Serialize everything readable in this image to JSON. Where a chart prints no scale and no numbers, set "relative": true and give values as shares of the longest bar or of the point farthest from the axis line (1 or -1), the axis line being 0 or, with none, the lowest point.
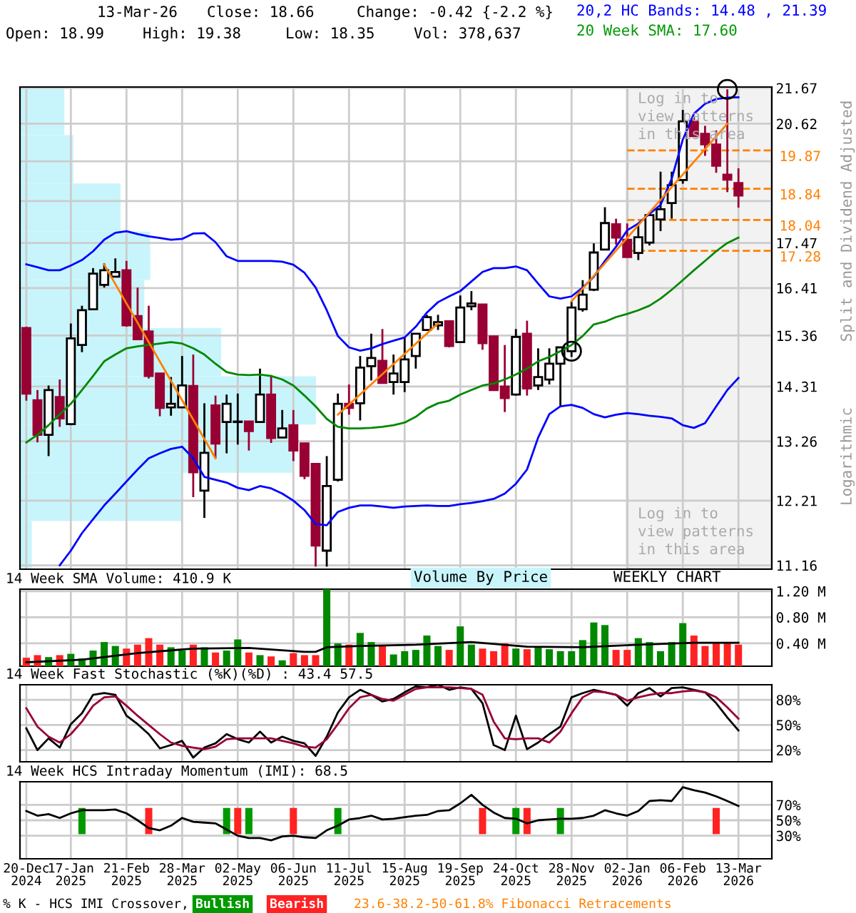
{
  "chart_data": [
    {
      "type": "candlestick",
      "x": [
        "2024-12-20",
        "2024-12-27",
        "2025-01-03",
        "2025-01-10",
        "2025-01-17",
        "2025-01-24",
        "2025-01-31",
        "2025-02-07",
        "2025-02-14",
        "2025-02-21",
        "2025-02-28",
        "2025-03-07",
        "2025-03-14",
        "2025-03-21",
        "2025-03-28",
        "2025-04-04",
        "2025-04-11",
        "2025-04-18",
        "2025-04-25",
        "2025-05-02",
        "2025-05-09",
        "2025-05-16",
        "2025-05-23",
        "2025-05-30",
        "2025-06-06",
        "2025-06-13",
        "2025-06-20",
        "2025-06-27",
        "2025-07-04",
        "2025-07-11",
        "2025-07-18",
        "2025-07-25",
        "2025-08-01",
        "2025-08-08",
        "2025-08-15",
        "2025-08-22",
        "2025-08-29",
        "2025-09-05",
        "2025-09-12",
        "2025-09-19",
        "2025-09-26",
        "2025-10-03",
        "2025-10-10",
        "2025-10-17",
        "2025-10-24",
        "2025-10-31",
        "2025-11-07",
        "2025-11-14",
        "2025-11-21",
        "2025-11-28",
        "2025-12-05",
        "2025-12-12",
        "2025-12-19",
        "2025-12-26",
        "2026-01-02",
        "2026-01-09",
        "2026-01-16",
        "2026-01-23",
        "2026-01-30",
        "2026-02-06",
        "2026-02-13",
        "2026-02-20",
        "2026-02-27",
        "2026-03-06",
        "2026-03-13"
      ],
      "ohlc": [
        [
          15.52,
          15.55,
          14.03,
          14.17
        ],
        [
          14.04,
          14.24,
          13.24,
          13.38
        ],
        [
          13.38,
          14.33,
          12.99,
          14.24
        ],
        [
          14.1,
          14.45,
          13.53,
          13.69
        ],
        [
          13.58,
          15.62,
          13.56,
          15.3
        ],
        [
          15.16,
          16.01,
          15.01,
          15.91
        ],
        [
          15.93,
          16.87,
          15.91,
          16.74
        ],
        [
          16.48,
          16.98,
          16.42,
          16.82
        ],
        [
          16.67,
          17.1,
          16.66,
          16.78
        ],
        [
          16.82,
          17.04,
          15.55,
          15.58
        ],
        [
          15.78,
          16.42,
          15.27,
          15.28
        ],
        [
          15.45,
          16.01,
          14.47,
          14.52
        ],
        [
          14.57,
          14.58,
          13.73,
          13.89
        ],
        [
          13.9,
          14.5,
          13.74,
          13.97
        ],
        [
          13.9,
          14.93,
          13.89,
          14.33
        ],
        [
          14.32,
          14.96,
          12.27,
          12.7
        ],
        [
          12.38,
          13.98,
          11.92,
          13.05
        ],
        [
          13.94,
          14.13,
          12.95,
          13.22
        ],
        [
          13.62,
          14.15,
          13.04,
          13.97
        ],
        [
          13.62,
          14.17,
          13.2,
          13.63
        ],
        [
          13.63,
          13.64,
          13.09,
          13.45
        ],
        [
          13.62,
          14.67,
          13.61,
          14.15
        ],
        [
          14.15,
          14.54,
          13.23,
          13.32
        ],
        [
          13.33,
          13.85,
          13.32,
          13.5
        ],
        [
          13.56,
          13.85,
          12.9,
          13.09
        ],
        [
          13.22,
          13.23,
          12.58,
          12.64
        ],
        [
          12.85,
          12.86,
          11.14,
          11.47
        ],
        [
          11.39,
          12.99,
          11.14,
          12.46
        ],
        [
          12.57,
          14.17,
          12.54,
          13.97
        ],
        [
          13.97,
          14.35,
          13.76,
          13.89
        ],
        [
          13.98,
          14.93,
          13.65,
          14.69
        ],
        [
          14.72,
          15.4,
          14.43,
          14.89
        ],
        [
          14.83,
          15.5,
          14.37,
          14.38
        ],
        [
          14.4,
          14.96,
          14.15,
          14.57
        ],
        [
          14.4,
          15.32,
          14.2,
          14.86
        ],
        [
          14.93,
          15.41,
          14.67,
          15.4
        ],
        [
          15.48,
          15.81,
          15.47,
          15.76
        ],
        [
          15.58,
          15.81,
          15.48,
          15.65
        ],
        [
          15.67,
          15.68,
          15.11,
          15.14
        ],
        [
          15.22,
          16.24,
          15.21,
          15.97
        ],
        [
          16.0,
          16.34,
          15.91,
          16.06
        ],
        [
          16.04,
          16.05,
          15.06,
          15.2
        ],
        [
          15.34,
          15.35,
          14.23,
          14.24
        ],
        [
          14.31,
          15.16,
          13.81,
          14.08
        ],
        [
          14.15,
          15.5,
          14.13,
          15.33
        ],
        [
          15.4,
          15.68,
          14.13,
          14.27
        ],
        [
          14.33,
          15.09,
          14.24,
          14.5
        ],
        [
          14.45,
          15.09,
          14.35,
          14.77
        ],
        [
          14.77,
          15.12,
          13.92,
          15.11
        ],
        [
          15.03,
          16.11,
          14.91,
          15.97
        ],
        [
          15.93,
          16.59,
          15.88,
          16.26
        ],
        [
          16.37,
          17.46,
          16.34,
          17.24
        ],
        [
          17.31,
          18.36,
          17.3,
          17.96
        ],
        [
          17.93,
          18.07,
          17.43,
          17.6
        ],
        [
          17.55,
          17.95,
          17.12,
          17.13
        ],
        [
          17.23,
          17.9,
          17.06,
          17.61
        ],
        [
          17.48,
          18.22,
          17.41,
          18.16
        ],
        [
          18.05,
          19.29,
          17.76,
          18.31
        ],
        [
          18.47,
          19.29,
          18.07,
          18.93
        ],
        [
          19.07,
          21.02,
          18.97,
          20.69
        ],
        [
          20.69,
          20.84,
          20.26,
          20.27
        ],
        [
          20.33,
          20.56,
          19.72,
          20.04
        ],
        [
          20.03,
          20.43,
          19.26,
          19.45
        ],
        [
          19.21,
          21.63,
          18.75,
          19.08
        ],
        [
          18.99,
          19.38,
          18.35,
          18.66
        ]
      ],
      "colors": [
        "#990033",
        "#990033",
        "#ffffff",
        "#990033",
        "#ffffff",
        "#ffffff",
        "#ffffff",
        "#ffffff",
        "#ffffff",
        "#990033",
        "#990033",
        "#990033",
        "#990033",
        "#ffffff",
        "#ffffff",
        "#990033",
        "#ffffff",
        "#990033",
        "#ffffff",
        "#ffffff",
        "#990033",
        "#ffffff",
        "#990033",
        "#ffffff",
        "#990033",
        "#990033",
        "#990033",
        "#ffffff",
        "#ffffff",
        "#990033",
        "#ffffff",
        "#ffffff",
        "#990033",
        "#ffffff",
        "#ffffff",
        "#ffffff",
        "#ffffff",
        "#ffffff",
        "#990033",
        "#ffffff",
        "#ffffff",
        "#990033",
        "#990033",
        "#990033",
        "#ffffff",
        "#990033",
        "#ffffff",
        "#ffffff",
        "#ffffff",
        "#ffffff",
        "#ffffff",
        "#ffffff",
        "#ffffff",
        "#990033",
        "#990033",
        "#ffffff",
        "#ffffff",
        "#ffffff",
        "#ffffff",
        "#ffffff",
        "#990033",
        "#990033",
        "#990033",
        "#990033",
        "#990033"
      ],
      "series": [
        {
          "type": "line",
          "color": "#0000ff",
          "values": [
            16.96,
            16.89,
            16.82,
            16.82,
            16.93,
            17.06,
            17.27,
            17.55,
            17.72,
            17.76,
            17.69,
            17.63,
            17.59,
            17.55,
            17.57,
            17.7,
            17.71,
            17.49,
            17.15,
            17.04,
            17.04,
            17.04,
            17.04,
            17.02,
            16.95,
            16.76,
            16.42,
            15.91,
            15.35,
            15.11,
            15.04,
            15.09,
            15.18,
            15.25,
            15.32,
            15.55,
            15.86,
            16.09,
            16.22,
            16.34,
            16.56,
            16.78,
            16.87,
            16.87,
            16.91,
            16.82,
            16.51,
            16.22,
            16.17,
            16.22,
            16.42,
            16.67,
            17.04,
            17.38,
            17.78,
            17.95,
            18.19,
            18.42,
            19.1,
            20.17,
            20.91,
            21.2,
            21.34,
            21.38,
            21.39
          ]
        },
        {
          "type": "line",
          "color": "#0000ff",
          "values": [
            null,
            null,
            null,
            11.16,
            11.39,
            11.67,
            11.9,
            12.13,
            12.33,
            12.54,
            12.75,
            12.95,
            13.04,
            13.12,
            13.16,
            12.95,
            12.62,
            12.57,
            12.52,
            12.43,
            12.39,
            12.46,
            12.42,
            12.33,
            12.21,
            12.05,
            11.82,
            11.8,
            12.02,
            12.09,
            12.13,
            12.13,
            12.11,
            12.09,
            12.11,
            12.12,
            12.13,
            12.12,
            12.12,
            12.15,
            12.17,
            12.2,
            12.24,
            12.33,
            12.5,
            12.75,
            13.33,
            13.77,
            13.92,
            13.95,
            13.89,
            13.77,
            13.71,
            13.76,
            13.79,
            13.77,
            13.74,
            13.72,
            13.69,
            13.56,
            13.51,
            13.6,
            13.92,
            14.24,
            14.48
          ]
        },
        {
          "type": "line",
          "color": "#008800",
          "values": [
            13.24,
            13.38,
            13.56,
            13.77,
            13.97,
            14.24,
            14.52,
            14.82,
            14.96,
            15.09,
            15.13,
            15.16,
            15.19,
            15.22,
            15.19,
            15.09,
            14.96,
            14.77,
            14.6,
            14.55,
            14.54,
            14.55,
            14.52,
            14.45,
            14.33,
            14.13,
            13.92,
            13.68,
            13.53,
            13.5,
            13.5,
            13.51,
            13.53,
            13.56,
            13.61,
            13.72,
            13.88,
            13.98,
            14.03,
            14.15,
            14.24,
            14.33,
            14.37,
            14.45,
            14.55,
            14.67,
            14.82,
            14.91,
            15.03,
            15.16,
            15.35,
            15.6,
            15.66,
            15.76,
            15.83,
            15.91,
            16.01,
            16.17,
            16.37,
            16.59,
            16.82,
            17.04,
            17.27,
            17.47,
            17.6
          ]
        },
        {
          "type": "line",
          "color": "#ff8000",
          "x": [
            "2025-02-07",
            "2025-04-18"
          ],
          "values": [
            16.95,
            12.95
          ]
        },
        {
          "type": "line",
          "color": "#ff8000",
          "x": [
            "2025-07-04",
            "2025-09-05"
          ],
          "values": [
            13.76,
            15.62
          ]
        },
        {
          "type": "line",
          "color": "#ff8000",
          "x": [
            "2025-11-28",
            "2026-03-06"
          ],
          "values": [
            16.11,
            20.62
          ]
        },
        {
          "type": "scatter",
          "color": "#000000",
          "marker": "circle",
          "x": [
            "2025-11-28",
            "2026-03-06"
          ],
          "values": [
            15.03,
            21.63
          ]
        }
      ],
      "log": true,
      "xlim": [
        "2024-12-16",
        "2026-04-03"
      ],
      "ylim": [
        11.1,
        21.7
      ],
      "xticks": [
        "2024-12-20",
        "2025-01-17",
        "2025-02-21",
        "2025-03-28",
        "2025-05-02",
        "2025-06-06",
        "2025-07-11",
        "2025-08-15",
        "2025-09-19",
        "2025-10-24",
        "2025-11-28",
        "2026-01-02",
        "2026-02-06",
        "2026-03-13"
      ],
      "yticks": [
        11.16,
        12.21,
        13.26,
        14.31,
        15.36,
        16.41,
        17.47,
        {
          "value": 18.52,
          "label": null
        },
        {
          "value": 19.57,
          "label": null
        },
        20.62,
        21.67
      ],
      "grid": true,
      "tick_labels": "y",
      "bands": [
        {
          "axis": "x",
          "from": "2026-01-02",
          "to": "2026-04-03",
          "color": "#f2f2f2"
        }
      ],
      "ref_lines": [
        {
          "axis": "y",
          "value": 19.87,
          "label": "19.87",
          "color": "#ff8000",
          "line_style": "dashed"
        },
        {
          "axis": "y",
          "value": 18.84,
          "label": "18.84",
          "color": "#ff8000",
          "line_style": "dashed"
        },
        {
          "axis": "y",
          "value": 18.04,
          "label": "18.04",
          "color": "#ff8000",
          "line_style": "dashed"
        },
        {
          "axis": "y",
          "value": 17.28,
          "label": "17.28",
          "color": "#ff8000",
          "line_style": "dashed"
        }
      ],
      "annotations": [
        "13-Mar-26",
        "Close: 18.66",
        "Change: -0.42 {-2.2 %}",
        "Open: 18.99",
        "High: 19.38",
        "Low: 18.35",
        "Vol: 378,637",
        "20,2 HC Bands: 14.48 , 21.39",
        "20 Week SMA: 17.60",
        "Split and Dividend Adjusted",
        "Logarithmic",
        "Log in to\nview patterns\nin this area",
        "Log in to\nview patterns\nin this area",
        "WEEKLY CHART",
        "Volume By Price"
      ]
    },
    {
      "type": "bar",
      "orientation": "horizontal",
      "relative": true,
      "color": "#c8f5fb",
      "categories": [
        null,
        null,
        null,
        null,
        null,
        null,
        null,
        null,
        null,
        null
      ],
      "values": [
        0.15,
        0.18,
        0.34,
        0.44,
        0.42,
        0.68,
        1,
        0.92,
        0.55,
        0.04
      ],
      "tick_labels": false
    },
    {
      "type": "bar",
      "title": "14 Week SMA Volume: 410.9 K",
      "x": [
        "2024-12-20",
        "2024-12-27",
        "2025-01-03",
        "2025-01-10",
        "2025-01-17",
        "2025-01-24",
        "2025-01-31",
        "2025-02-07",
        "2025-02-14",
        "2025-02-21",
        "2025-02-28",
        "2025-03-07",
        "2025-03-14",
        "2025-03-21",
        "2025-03-28",
        "2025-04-04",
        "2025-04-11",
        "2025-04-18",
        "2025-04-25",
        "2025-05-02",
        "2025-05-09",
        "2025-05-16",
        "2025-05-23",
        "2025-05-30",
        "2025-06-06",
        "2025-06-13",
        "2025-06-20",
        "2025-06-27",
        "2025-07-04",
        "2025-07-11",
        "2025-07-18",
        "2025-07-25",
        "2025-08-01",
        "2025-08-08",
        "2025-08-15",
        "2025-08-22",
        "2025-08-29",
        "2025-09-05",
        "2025-09-12",
        "2025-09-19",
        "2025-09-26",
        "2025-10-03",
        "2025-10-10",
        "2025-10-17",
        "2025-10-24",
        "2025-10-31",
        "2025-11-07",
        "2025-11-14",
        "2025-11-21",
        "2025-11-28",
        "2025-12-05",
        "2025-12-12",
        "2025-12-19",
        "2025-12-26",
        "2026-01-02",
        "2026-01-09",
        "2026-01-16",
        "2026-01-23",
        "2026-01-30",
        "2026-02-06",
        "2026-02-13",
        "2026-02-20",
        "2026-02-27",
        "2026-03-06",
        "2026-03-13"
      ],
      "series": [
        {
          "type": "bar",
          "values": [
            0.18,
            0.22,
            0.19,
            0.22,
            0.24,
            0.17,
            0.29,
            0.42,
            0.36,
            0.32,
            0.38,
            0.48,
            0.38,
            0.34,
            0.29,
            0.38,
            0.34,
            0.26,
            0.29,
            0.46,
            0.26,
            0.22,
            0.2,
            0.14,
            0.25,
            0.22,
            0.22,
            1.23,
            0.4,
            0.38,
            0.56,
            0.42,
            0.37,
            0.23,
            0.28,
            0.3,
            0.52,
            0.36,
            0.3,
            0.66,
            0.38,
            0.32,
            0.28,
            0.4,
            0.32,
            0.31,
            0.35,
            0.31,
            0.28,
            0.28,
            0.45,
            0.72,
            0.68,
            0.3,
            0.3,
            0.48,
            0.42,
            0.28,
            0.42,
            0.71,
            0.52,
            0.36,
            0.4,
            0.42,
            0.38
          ],
          "colors": [
            "#ff2222",
            "#ff2222",
            "#008800",
            "#ff2222",
            "#008800",
            "#008800",
            "#008800",
            "#008800",
            "#008800",
            "#ff2222",
            "#ff2222",
            "#ff2222",
            "#ff2222",
            "#008800",
            "#008800",
            "#ff2222",
            "#008800",
            "#ff2222",
            "#008800",
            "#008800",
            "#ff2222",
            "#008800",
            "#ff2222",
            "#008800",
            "#ff2222",
            "#ff2222",
            "#ff2222",
            "#008800",
            "#008800",
            "#ff2222",
            "#008800",
            "#008800",
            "#ff2222",
            "#008800",
            "#008800",
            "#008800",
            "#008800",
            "#008800",
            "#ff2222",
            "#008800",
            "#008800",
            "#ff2222",
            "#ff2222",
            "#ff2222",
            "#008800",
            "#ff2222",
            "#008800",
            "#008800",
            "#008800",
            "#008800",
            "#008800",
            "#008800",
            "#008800",
            "#ff2222",
            "#ff2222",
            "#008800",
            "#008800",
            "#008800",
            "#008800",
            "#008800",
            "#ff2222",
            "#ff2222",
            "#ff2222",
            "#ff2222",
            "#ff2222"
          ]
        },
        {
          "type": "line",
          "color": "#000000",
          "x": [
            "2024-12-20",
            "2025-01-24",
            "2025-02-28",
            "2025-04-04",
            "2025-05-09",
            "2025-06-13",
            "2025-06-20",
            "2025-06-27",
            "2025-07-18",
            "2025-08-22",
            "2025-09-26",
            "2025-10-31",
            "2025-12-05",
            "2026-01-09",
            "2026-02-13",
            "2026-03-13"
          ],
          "values": [
            0.11,
            0.15,
            0.25,
            0.32,
            0.33,
            0.27,
            0.27,
            0.34,
            0.36,
            0.38,
            0.42,
            0.35,
            0.34,
            0.38,
            0.41,
            0.41
          ]
        }
      ],
      "xlim": [
        "2024-12-16",
        "2026-04-03"
      ],
      "ylim": [
        0.05,
        1.23
      ],
      "xticks": [
        "2024-12-20",
        "2025-01-17",
        "2025-02-21",
        "2025-03-28",
        "2025-05-02",
        "2025-06-06",
        "2025-07-11",
        "2025-08-15",
        "2025-09-19",
        "2025-10-24",
        "2025-11-28",
        "2026-01-02",
        "2026-02-06",
        "2026-03-13"
      ],
      "yticks": [
        {
          "value": 0.4,
          "label": "0.40 M"
        },
        {
          "value": 0.8,
          "label": "0.80 M"
        },
        {
          "value": 1.2,
          "label": "1.20 M"
        }
      ],
      "grid": true,
      "tick_labels": "y"
    },
    {
      "type": "line",
      "title": "14 Week Fast Stochastic (%K)(%D) : 43.4 57.5",
      "x": [
        "2024-12-20",
        "2024-12-27",
        "2025-01-03",
        "2025-01-10",
        "2025-01-17",
        "2025-01-24",
        "2025-01-31",
        "2025-02-07",
        "2025-02-14",
        "2025-02-21",
        "2025-02-28",
        "2025-03-07",
        "2025-03-14",
        "2025-03-21",
        "2025-03-28",
        "2025-04-04",
        "2025-04-11",
        "2025-04-18",
        "2025-04-25",
        "2025-05-02",
        "2025-05-09",
        "2025-05-16",
        "2025-05-23",
        "2025-05-30",
        "2025-06-06",
        "2025-06-13",
        "2025-06-20",
        "2025-06-27",
        "2025-07-04",
        "2025-07-11",
        "2025-07-18",
        "2025-07-25",
        "2025-08-01",
        "2025-08-08",
        "2025-08-15",
        "2025-08-22",
        "2025-08-29",
        "2025-09-05",
        "2025-09-12",
        "2025-09-19",
        "2025-09-26",
        "2025-10-03",
        "2025-10-10",
        "2025-10-17",
        "2025-10-24",
        "2025-10-31",
        "2025-11-07",
        "2025-11-14",
        "2025-11-21",
        "2025-11-28",
        "2025-12-05",
        "2025-12-12",
        "2025-12-19",
        "2025-12-26",
        "2026-01-02",
        "2026-01-09",
        "2026-01-16",
        "2026-01-23",
        "2026-01-30",
        "2026-02-06",
        "2026-02-13",
        "2026-02-20",
        "2026-02-27",
        "2026-03-06",
        "2026-03-13"
      ],
      "series": [
        {
          "color": "#000000",
          "values": [
            46,
            20,
            34,
            23,
            51,
            64,
            86,
            88,
            86,
            61,
            51,
            39,
            22,
            26,
            31,
            11,
            23,
            28,
            39,
            33,
            29,
            42,
            29,
            36,
            31,
            28,
            13,
            36,
            65,
            83,
            92,
            86,
            78,
            81,
            89,
            96,
            95,
            98,
            92,
            95,
            93,
            76,
            26,
            20,
            61,
            21,
            29,
            39,
            48,
            83,
            88,
            92,
            89,
            86,
            73,
            88,
            94,
            84,
            94,
            95,
            92,
            89,
            76,
            59,
            43.4
          ]
        },
        {
          "color": "#990033",
          "values": [
            70,
            48,
            36,
            29,
            39,
            54,
            73,
            83,
            84,
            73,
            61,
            50,
            39,
            29,
            25,
            23,
            21,
            24,
            33,
            34,
            34,
            34,
            34,
            31,
            28,
            24,
            23,
            33,
            51,
            70,
            83,
            86,
            81,
            79,
            86,
            93,
            95,
            95,
            95,
            94,
            93,
            86,
            54,
            34,
            33,
            34,
            34,
            29,
            42,
            64,
            83,
            90,
            89,
            86,
            79,
            83,
            86,
            88,
            88,
            90,
            91,
            89,
            83,
            71,
            57.5
          ]
        }
      ],
      "xlim": [
        "2024-12-16",
        "2026-04-03"
      ],
      "ylim": [
        6,
        98
      ],
      "xticks": [
        "2024-12-20",
        "2025-01-17",
        "2025-02-21",
        "2025-03-28",
        "2025-05-02",
        "2025-06-06",
        "2025-07-11",
        "2025-08-15",
        "2025-09-19",
        "2025-10-24",
        "2025-11-28",
        "2026-01-02",
        "2026-02-06",
        "2026-03-13"
      ],
      "yticks": [
        {
          "value": 20,
          "label": "20%"
        },
        {
          "value": 50,
          "label": "50%"
        },
        {
          "value": 80,
          "label": "80%"
        }
      ],
      "grid": true,
      "tick_labels": "y"
    },
    {
      "type": "line",
      "title": "14 Week HCS Intraday Momentum (IMI): 68.5",
      "x": [
        "2024-12-20",
        "2024-12-27",
        "2025-01-03",
        "2025-01-10",
        "2025-01-17",
        "2025-01-24",
        "2025-01-31",
        "2025-02-07",
        "2025-02-14",
        "2025-02-21",
        "2025-02-28",
        "2025-03-07",
        "2025-03-14",
        "2025-03-21",
        "2025-03-28",
        "2025-04-04",
        "2025-04-11",
        "2025-04-18",
        "2025-04-25",
        "2025-05-02",
        "2025-05-09",
        "2025-05-16",
        "2025-05-23",
        "2025-05-30",
        "2025-06-06",
        "2025-06-13",
        "2025-06-20",
        "2025-06-27",
        "2025-07-04",
        "2025-07-11",
        "2025-07-18",
        "2025-07-25",
        "2025-08-01",
        "2025-08-08",
        "2025-08-15",
        "2025-08-22",
        "2025-08-29",
        "2025-09-05",
        "2025-09-12",
        "2025-09-19",
        "2025-09-26",
        "2025-10-03",
        "2025-10-10",
        "2025-10-17",
        "2025-10-24",
        "2025-10-31",
        "2025-11-07",
        "2025-11-14",
        "2025-11-21",
        "2025-11-28",
        "2025-12-05",
        "2025-12-12",
        "2025-12-19",
        "2025-12-26",
        "2026-01-02",
        "2026-01-09",
        "2026-01-16",
        "2026-01-23",
        "2026-01-30",
        "2026-02-06",
        "2026-02-13",
        "2026-02-20",
        "2026-02-27",
        "2026-03-06",
        "2026-03-13"
      ],
      "series": [
        {
          "type": "bar",
          "name": "Bullish",
          "color": "#009900",
          "x": [
            "2025-01-24",
            "2025-04-25",
            "2025-05-09",
            "2025-07-04",
            "2025-10-24",
            "2025-11-21"
          ],
          "values": [
            34,
            34,
            34,
            34,
            34,
            34
          ],
          "base": [
            32,
            32,
            32,
            32,
            32,
            32
          ]
        },
        {
          "type": "bar",
          "name": "Bearish",
          "color": "#ff2222",
          "x": [
            "2025-03-07",
            "2025-05-02",
            "2025-06-06",
            "2025-10-03",
            "2025-10-31",
            "2026-02-27"
          ],
          "values": [
            34,
            34,
            34,
            34,
            34,
            34
          ],
          "base": [
            32,
            32,
            32,
            32,
            32,
            32
          ]
        },
        {
          "type": "line",
          "color": "#000000",
          "values": [
            62,
            56,
            58,
            53,
            59,
            63,
            63,
            63,
            64,
            59,
            50,
            40,
            37,
            43,
            53,
            48,
            47,
            46,
            38,
            30,
            27,
            27,
            24,
            29,
            30,
            28,
            27,
            37,
            43,
            51,
            53,
            56,
            51,
            52,
            54,
            56,
            57,
            62,
            63,
            72,
            83,
            70,
            60,
            53,
            52,
            46,
            50,
            51,
            52,
            52,
            53,
            56,
            63,
            59,
            56,
            62,
            75,
            76,
            75,
            93,
            89,
            86,
            81,
            75,
            68.5
          ]
        }
      ],
      "xlim": [
        "2024-12-16",
        "2026-04-03"
      ],
      "ylim": [
        0,
        100
      ],
      "xticks": [
        {
          "value": "2024-12-20",
          "label": "20-Dec\n2024"
        },
        {
          "value": "2025-01-17",
          "label": "17-Jan\n2025"
        },
        {
          "value": "2025-02-21",
          "label": "21-Feb\n2025"
        },
        {
          "value": "2025-03-28",
          "label": "28-Mar\n2025"
        },
        {
          "value": "2025-05-02",
          "label": "02-May\n2025"
        },
        {
          "value": "2025-06-06",
          "label": "06-Jun\n2025"
        },
        {
          "value": "2025-07-11",
          "label": "11-Jul\n2025"
        },
        {
          "value": "2025-08-15",
          "label": "15-Aug\n2025"
        },
        {
          "value": "2025-09-19",
          "label": "19-Sep\n2025"
        },
        {
          "value": "2025-10-24",
          "label": "24-Oct\n2025"
        },
        {
          "value": "2025-11-28",
          "label": "28-Nov\n2025"
        },
        {
          "value": "2026-01-02",
          "label": "02-Jan\n2026"
        },
        {
          "value": "2026-02-06",
          "label": "06-Feb\n2026"
        },
        {
          "value": "2026-03-13",
          "label": "13-Mar\n2026"
        }
      ],
      "yticks": [
        {
          "value": 30,
          "label": "30%"
        },
        {
          "value": 50,
          "label": "50%"
        },
        {
          "value": 70,
          "label": "70%"
        }
      ],
      "grid": true,
      "legend": "bottom",
      "annotations": [
        "% K - HCS IMI Crossover,",
        "23.6-38.2-50-61.8% Fibonacci Retracements"
      ]
    }
  ]
}
